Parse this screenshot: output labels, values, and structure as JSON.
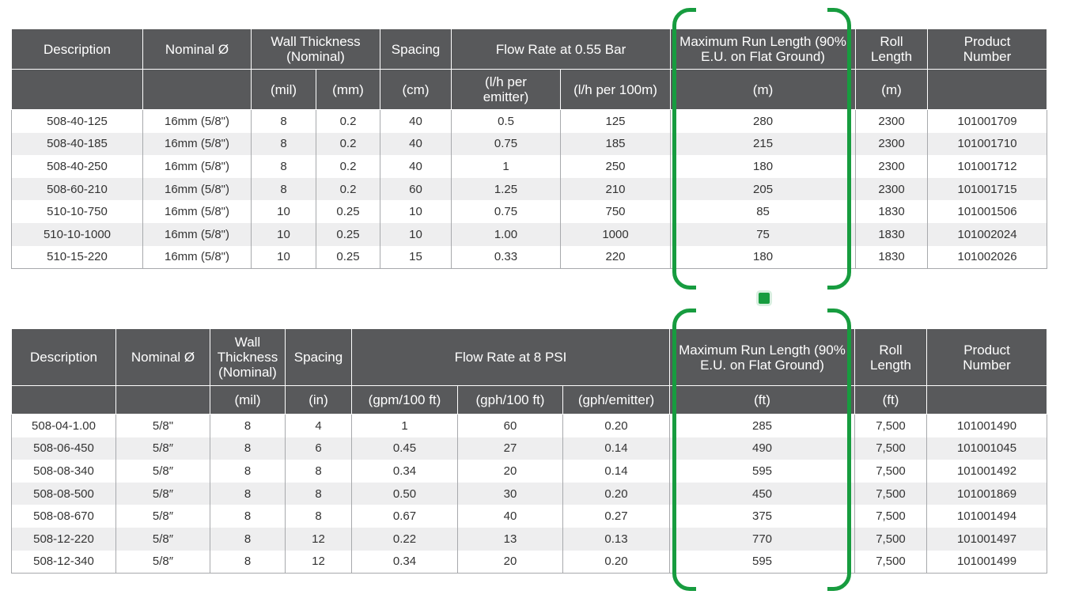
{
  "metric_table": {
    "headers": {
      "description": "Description",
      "nominal": "Nominal Ø",
      "wall_thickness": "Wall Thickness (Nominal)",
      "spacing": "Spacing",
      "flow_rate": "Flow  Rate at 0.55 Bar",
      "max_run_length": "Maximum Run Length (90% E.U. on Flat Ground)",
      "roll_length": "Roll Length",
      "product_number": "Product Number"
    },
    "units": [
      "(mil)",
      "(mm)",
      "(cm)",
      "(l/h per emitter)",
      "(l/h per 100m)",
      "(m)",
      "(m)"
    ],
    "rows": [
      [
        "508-40-125",
        "16mm (5/8\")",
        "8",
        "0.2",
        "40",
        "0.5",
        "125",
        "280",
        "2300",
        "101001709"
      ],
      [
        "508-40-185",
        "16mm (5/8\")",
        "8",
        "0.2",
        "40",
        "0.75",
        "185",
        "215",
        "2300",
        "101001710"
      ],
      [
        "508-40-250",
        "16mm (5/8\")",
        "8",
        "0.2",
        "40",
        "1",
        "250",
        "180",
        "2300",
        "101001712"
      ],
      [
        "508-60-210",
        "16mm (5/8\")",
        "8",
        "0.2",
        "60",
        "1.25",
        "210",
        "205",
        "2300",
        "101001715"
      ],
      [
        "510-10-750",
        "16mm (5/8\")",
        "10",
        "0.25",
        "10",
        "0.75",
        "750",
        "85",
        "1830",
        "101001506"
      ],
      [
        "510-10-1000",
        "16mm (5/8\")",
        "10",
        "0.25",
        "10",
        "1.00",
        "1000",
        "75",
        "1830",
        "101002024"
      ],
      [
        "510-15-220",
        "16mm (5/8\")",
        "10",
        "0.25",
        "15",
        "0.33",
        "220",
        "180",
        "1830",
        "101002026"
      ]
    ]
  },
  "imperial_table": {
    "headers": {
      "description": "Description",
      "nominal": "Nominal Ø",
      "wall_thickness": "Wall Thickness (Nominal)",
      "spacing": "Spacing",
      "flow_rate": "Flow  Rate at 8 PSI",
      "max_run_length": "Maximum Run Length (90% E.U. on Flat Ground)",
      "roll_length": "Roll Length",
      "product_number": "Product Number"
    },
    "units": [
      "(mil)",
      "(in)",
      "(gpm/100 ft)",
      "(gph/100 ft)",
      "(gph/emitter)",
      "(ft)",
      "(ft)"
    ],
    "rows": [
      [
        "508-04-1.00",
        "5/8\"",
        "8",
        "4",
        "1",
        "60",
        "0.20",
        "285",
        "7,500",
        "101001490"
      ],
      [
        "508-06-450",
        "5/8″",
        "8",
        "6",
        "0.45",
        "27",
        "0.14",
        "490",
        "7,500",
        "101001045"
      ],
      [
        "508-08-340",
        "5/8″",
        "8",
        "8",
        "0.34",
        "20",
        "0.14",
        "595",
        "7,500",
        "101001492"
      ],
      [
        "508-08-500",
        "5/8″",
        "8",
        "8",
        "0.50",
        "30",
        "0.20",
        "450",
        "7,500",
        "101001869"
      ],
      [
        "508-08-670",
        "5/8″",
        "8",
        "8",
        "0.67",
        "40",
        "0.27",
        "375",
        "7,500",
        "101001494"
      ],
      [
        "508-12-220",
        "5/8″",
        "8",
        "12",
        "0.22",
        "13",
        "0.13",
        "770",
        "7,500",
        "101001497"
      ],
      [
        "508-12-340",
        "5/8″",
        "8",
        "12",
        "0.34",
        "20",
        "0.20",
        "595",
        "7,500",
        "101001499"
      ]
    ]
  },
  "highlight": {
    "color": "#179c3f"
  },
  "colors": {
    "header_bg": "#58595b",
    "row_alt_bg": "#eeeeef",
    "border": "#a7a9ac"
  }
}
